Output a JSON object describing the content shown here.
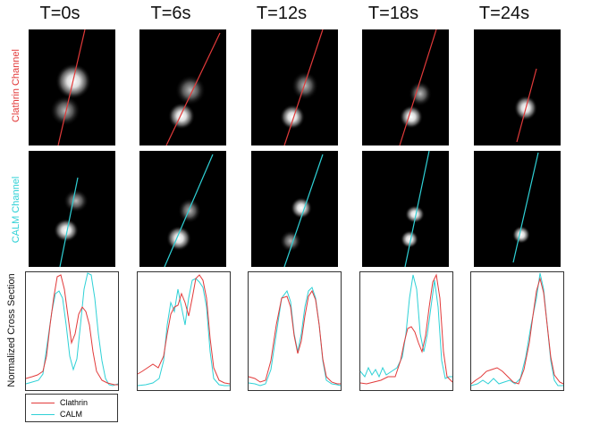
{
  "time_labels": [
    "T=0s",
    "T=6s",
    "T=12s",
    "T=18s",
    "T=24s"
  ],
  "row_labels": {
    "clathrin": "Clathrin Channel",
    "calm": "CALM Channel",
    "cross_section": "Normalized Cross Section"
  },
  "legend": {
    "clathrin": "Clathrin",
    "calm": "CALM"
  },
  "colors": {
    "clathrin": "#e23a3a",
    "calm": "#2fd1d6",
    "image_bg": "#000000"
  }
}
